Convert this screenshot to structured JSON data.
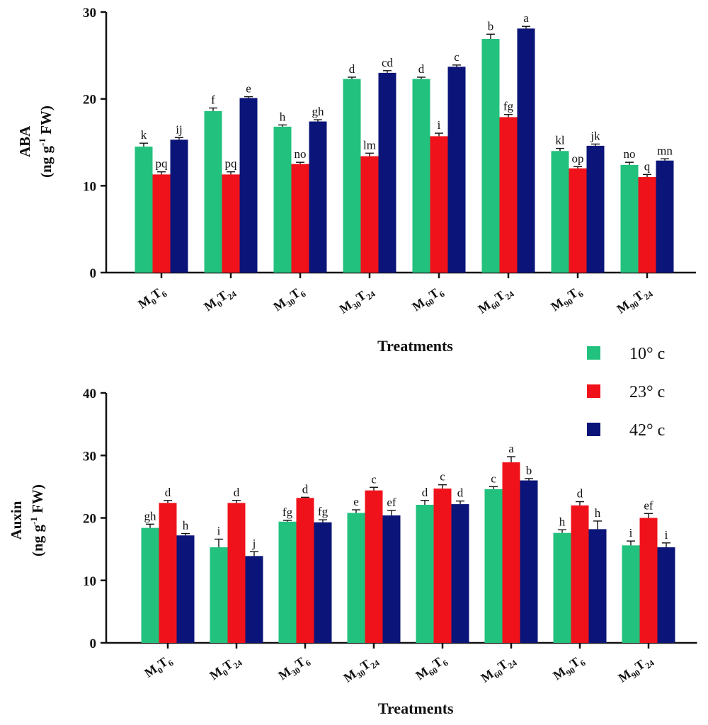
{
  "legend": [
    {
      "label": "10° c",
      "color": "#22c17e"
    },
    {
      "label": "23° c",
      "color": "#f0121a"
    },
    {
      "label": "42° c",
      "color": "#0b1478"
    }
  ],
  "chart_data": [
    {
      "type": "bar",
      "ylabel_main": "ABA",
      "ylabel_unit_prefix": "(ng g",
      "ylabel_unit_sup": "-1",
      "ylabel_unit_suffix": " FW)",
      "xlabel": "Treatments",
      "ylim": [
        0,
        30
      ],
      "yticks": [
        "0",
        "10",
        "20",
        "30"
      ],
      "categories": [
        {
          "m": "M",
          "ms": "0",
          "t": "T",
          "ts": "6"
        },
        {
          "m": "M",
          "ms": "0",
          "t": "T",
          "ts": "24"
        },
        {
          "m": "M",
          "ms": "30",
          "t": "T",
          "ts": "6"
        },
        {
          "m": "M",
          "ms": "30",
          "t": "T",
          "ts": "24"
        },
        {
          "m": "M",
          "ms": "60",
          "t": "T",
          "ts": "6"
        },
        {
          "m": "M",
          "ms": "60",
          "t": "T",
          "ts": "24"
        },
        {
          "m": "M",
          "ms": "90",
          "t": "T",
          "ts": "6"
        },
        {
          "m": "M",
          "ms": "90",
          "t": "T",
          "ts": "24"
        }
      ],
      "series": [
        {
          "values": [
            14.5,
            18.6,
            16.8,
            22.3,
            22.3,
            26.9,
            14.0,
            12.4
          ],
          "errors": [
            0.4,
            0.35,
            0.2,
            0.2,
            0.2,
            0.55,
            0.3,
            0.3
          ],
          "letters": [
            "k",
            "f",
            "h",
            "d",
            "d",
            "b",
            "kl",
            "no"
          ]
        },
        {
          "values": [
            11.3,
            11.3,
            12.5,
            13.4,
            15.7,
            17.9,
            12.0,
            11.0
          ],
          "errors": [
            0.3,
            0.3,
            0.2,
            0.35,
            0.35,
            0.3,
            0.2,
            0.3
          ],
          "letters": [
            "pq",
            "pq",
            "no",
            "lm",
            "i",
            "fg",
            "op",
            "q"
          ]
        },
        {
          "values": [
            15.3,
            20.1,
            17.4,
            23.0,
            23.7,
            28.1,
            14.6,
            12.9
          ],
          "errors": [
            0.25,
            0.15,
            0.2,
            0.25,
            0.2,
            0.25,
            0.2,
            0.2
          ],
          "letters": [
            "ij",
            "e",
            "gh",
            "cd",
            "c",
            "a",
            "jk",
            "mn"
          ]
        }
      ]
    },
    {
      "type": "bar",
      "ylabel_main": "Auxin",
      "ylabel_unit_prefix": "(ng g",
      "ylabel_unit_sup": "-1",
      "ylabel_unit_suffix": " FW)",
      "xlabel": "Treatments",
      "ylim": [
        0,
        40
      ],
      "yticks": [
        "0",
        "10",
        "20",
        "30",
        "40"
      ],
      "categories": [
        {
          "m": "M",
          "ms": "0",
          "t": "T",
          "ts": "6"
        },
        {
          "m": "M",
          "ms": "0",
          "t": "T",
          "ts": "24"
        },
        {
          "m": "M",
          "ms": "30",
          "t": "T",
          "ts": "6"
        },
        {
          "m": "M",
          "ms": "30",
          "t": "T",
          "ts": "24"
        },
        {
          "m": "M",
          "ms": "60",
          "t": "T",
          "ts": "6"
        },
        {
          "m": "M",
          "ms": "60",
          "t": "T",
          "ts": "24"
        },
        {
          "m": "M",
          "ms": "90",
          "t": "T",
          "ts": "6"
        },
        {
          "m": "M",
          "ms": "90",
          "t": "T",
          "ts": "24"
        }
      ],
      "series": [
        {
          "values": [
            18.4,
            15.3,
            19.4,
            20.8,
            22.1,
            24.6,
            17.6,
            15.6
          ],
          "errors": [
            0.6,
            1.3,
            0.2,
            0.5,
            0.7,
            0.4,
            0.5,
            0.7
          ],
          "letters": [
            "gh",
            "i",
            "fg",
            "e",
            "d",
            "c",
            "h",
            "i"
          ]
        },
        {
          "values": [
            22.4,
            22.4,
            23.2,
            24.4,
            24.7,
            28.9,
            22.0,
            20.0
          ],
          "errors": [
            0.4,
            0.4,
            0.1,
            0.5,
            0.6,
            0.9,
            0.6,
            0.7
          ],
          "letters": [
            "d",
            "d",
            "d",
            "c",
            "c",
            "a",
            "d",
            "ef"
          ]
        },
        {
          "values": [
            17.2,
            13.9,
            19.3,
            20.4,
            22.2,
            26.0,
            18.2,
            15.3
          ],
          "errors": [
            0.3,
            0.7,
            0.4,
            0.8,
            0.5,
            0.3,
            1.3,
            0.7
          ],
          "letters": [
            "h",
            "j",
            "fg",
            "ef",
            "d",
            "b",
            "h",
            "i"
          ]
        }
      ]
    }
  ]
}
